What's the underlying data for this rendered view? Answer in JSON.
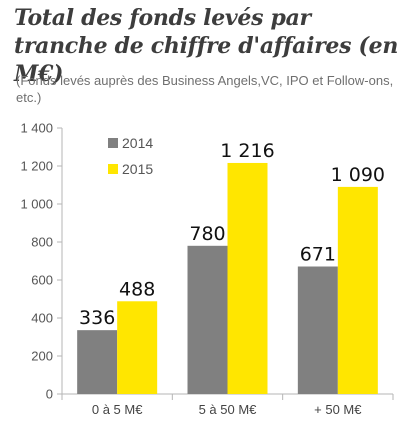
{
  "chart_data": {
    "type": "bar",
    "title": "Total des fonds levés par tranche de chiffre d'affaires (en M€)",
    "subtitle": "(Fonds levés auprès des Business Angels,VC, IPO et Follow-ons, etc.)",
    "categories": [
      "0 à 5 M€",
      "5 à 50 M€",
      "+ 50 M€"
    ],
    "series": [
      {
        "name": "2014",
        "values": [
          336,
          780,
          671
        ],
        "labels": [
          "336",
          "780",
          "671"
        ],
        "color": "#808080"
      },
      {
        "name": "2015",
        "values": [
          488,
          1216,
          1090
        ],
        "labels": [
          "488",
          "1 216",
          "1 090"
        ],
        "color": "#ffe600"
      }
    ],
    "ylim": [
      0,
      1400
    ],
    "yticks": [
      0,
      200,
      400,
      600,
      800,
      1000,
      1200,
      1400
    ],
    "ytick_labels": [
      "0",
      "200",
      "400",
      "600",
      "800",
      "1 000",
      "1 200",
      "1 400"
    ],
    "xlabel": "",
    "ylabel": "",
    "grid": false,
    "legend_position": "top-left"
  }
}
